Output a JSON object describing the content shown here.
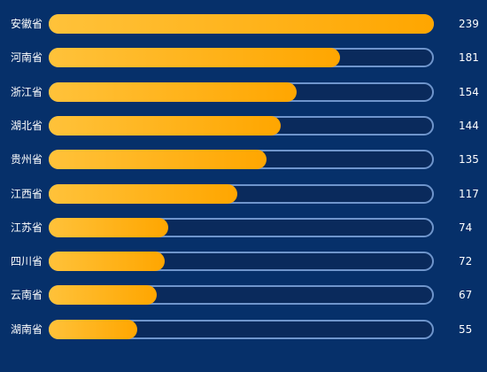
{
  "chart_data": {
    "type": "bar",
    "orientation": "horizontal",
    "categories": [
      "安徽省",
      "河南省",
      "浙江省",
      "湖北省",
      "贵州省",
      "江西省",
      "江苏省",
      "四川省",
      "云南省",
      "湖南省"
    ],
    "values": [
      239,
      181,
      154,
      144,
      135,
      117,
      74,
      72,
      67,
      55
    ],
    "xlim": [
      0,
      239
    ],
    "grid": false,
    "colors": {
      "background": "#06306a",
      "track_fill": "#0a2a5c",
      "track_border": "#6f95cc",
      "bar_start": "#ffc23a",
      "bar_end": "#ffa600",
      "text": "#ffffff"
    }
  }
}
